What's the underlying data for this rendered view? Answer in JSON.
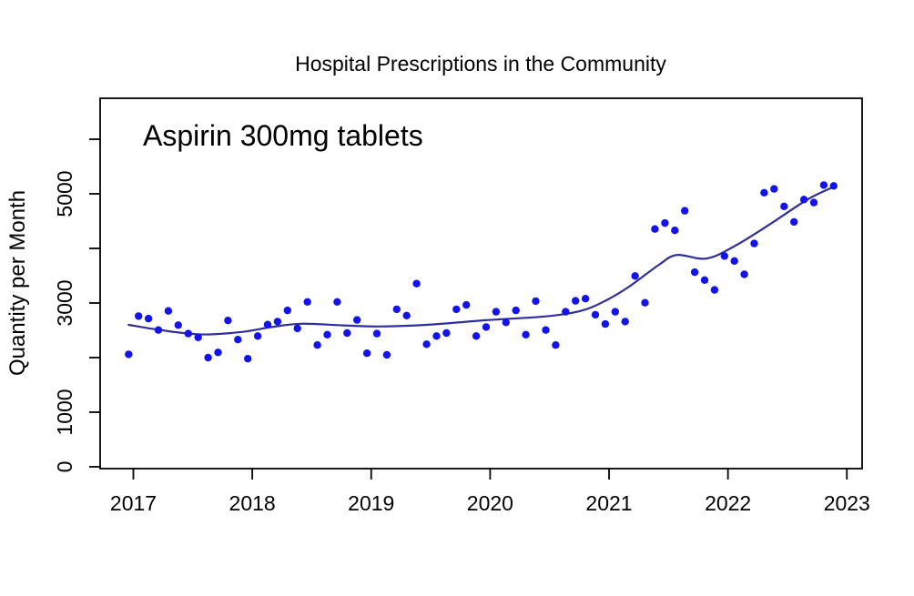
{
  "title": "Hospital Prescriptions in the Community",
  "annotation": "Aspirin 300mg tablets",
  "ylabel": "Quantity per Month",
  "colors": {
    "point": "#1313ec",
    "trend": "#2e2e9c",
    "axis": "#000000",
    "text": "#000000",
    "background": "#ffffff"
  },
  "axes": {
    "x_ticks": [
      2017,
      2018,
      2019,
      2020,
      2021,
      2022,
      2023
    ],
    "y_ticks": [
      {
        "v": 0,
        "label": "0"
      },
      {
        "v": 1000,
        "label": "1000"
      },
      {
        "v": 2000,
        "label": ""
      },
      {
        "v": 3000,
        "label": "3000"
      },
      {
        "v": 4000,
        "label": ""
      },
      {
        "v": 5000,
        "label": "5000"
      },
      {
        "v": 6000,
        "label": ""
      }
    ]
  },
  "chart_data": {
    "type": "scatter",
    "title": "Hospital Prescriptions in the Community",
    "subtitle": "Aspirin 300mg tablets",
    "xlabel": "",
    "ylabel": "Quantity per Month",
    "xlim": [
      2016.72,
      2023.13
    ],
    "ylim": [
      0,
      6750
    ],
    "grid": false,
    "legend": "none",
    "months": [
      "2017-01",
      "2017-02",
      "2017-03",
      "2017-04",
      "2017-05",
      "2017-06",
      "2017-07",
      "2017-08",
      "2017-09",
      "2017-10",
      "2017-11",
      "2017-12",
      "2018-01",
      "2018-02",
      "2018-03",
      "2018-04",
      "2018-05",
      "2018-06",
      "2018-07",
      "2018-08",
      "2018-09",
      "2018-10",
      "2018-11",
      "2018-12",
      "2019-01",
      "2019-02",
      "2019-03",
      "2019-04",
      "2019-05",
      "2019-06",
      "2019-07",
      "2019-08",
      "2019-09",
      "2019-10",
      "2019-11",
      "2019-12",
      "2020-01",
      "2020-02",
      "2020-03",
      "2020-04",
      "2020-05",
      "2020-06",
      "2020-07",
      "2020-08",
      "2020-09",
      "2020-10",
      "2020-11",
      "2020-12",
      "2021-01",
      "2021-02",
      "2021-03",
      "2021-04",
      "2021-05",
      "2021-06",
      "2021-07",
      "2021-08",
      "2021-09",
      "2021-10",
      "2021-11",
      "2021-12",
      "2022-01",
      "2022-02",
      "2022-03",
      "2022-04",
      "2022-05",
      "2022-06",
      "2022-07",
      "2022-08",
      "2022-09",
      "2022-10",
      "2022-11",
      "2022-12"
    ],
    "values": [
      2060,
      2760,
      2715,
      2505,
      2855,
      2595,
      2440,
      2370,
      2000,
      2095,
      2680,
      2330,
      1980,
      2395,
      2605,
      2660,
      2865,
      2535,
      3020,
      2230,
      2420,
      3020,
      2450,
      2690,
      2080,
      2440,
      2050,
      2885,
      2770,
      3355,
      2245,
      2395,
      2450,
      2885,
      2965,
      2395,
      2560,
      2840,
      2645,
      2865,
      2420,
      3035,
      2505,
      2230,
      2840,
      3040,
      3080,
      2785,
      2615,
      2840,
      2660,
      3495,
      3005,
      4355,
      4465,
      4330,
      4690,
      3565,
      3420,
      3240,
      3860,
      3770,
      3525,
      4090,
      5020,
      5090,
      4770,
      4485,
      4895,
      4840,
      5160,
      5145
    ],
    "trend": {
      "name": "smoothed trend line",
      "x": [
        2017.0,
        2017.25,
        2017.6,
        2017.95,
        2018.2,
        2018.45,
        2018.8,
        2019.1,
        2019.5,
        2020.0,
        2020.5,
        2020.8,
        2021.0,
        2021.2,
        2021.45,
        2021.6,
        2021.85,
        2022.1,
        2022.4,
        2022.7,
        2022.92
      ],
      "y": [
        2600,
        2510,
        2425,
        2470,
        2560,
        2620,
        2590,
        2570,
        2600,
        2685,
        2755,
        2860,
        3040,
        3300,
        3700,
        3880,
        3815,
        4060,
        4470,
        4900,
        5130
      ]
    }
  }
}
